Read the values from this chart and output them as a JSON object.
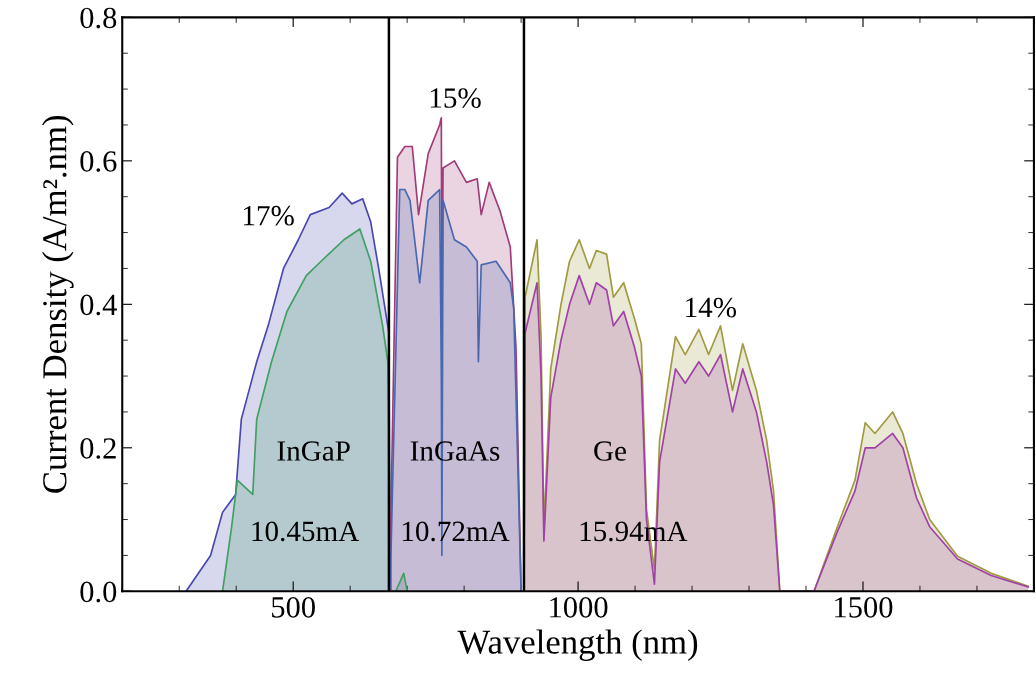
{
  "chart_data": {
    "type": "area",
    "xlabel": "Wavelength (nm)",
    "ylabel": "Current Density (A/m².nm)",
    "xlim": [
      200,
      1800
    ],
    "xticks": [
      500,
      1000,
      1500
    ],
    "ylim": [
      0,
      0.8
    ],
    "yticks": [
      {
        "value": 0,
        "label": "0.0"
      },
      {
        "value": 0.2,
        "label": "0.2"
      },
      {
        "value": 0.4,
        "label": "0.4"
      },
      {
        "value": 0.6,
        "label": "0.6"
      },
      {
        "value": 0.8,
        "label": "0.8"
      }
    ],
    "grid": false,
    "legend": false,
    "series": [
      {
        "color": "#4848b0",
        "x": [
          312,
          355,
          376,
          399,
          409,
          436,
          456,
          483,
          509,
          530,
          563,
          586,
          603,
          622,
          636,
          650,
          662,
          668,
          670
        ],
        "values": [
          0,
          0.05,
          0.11,
          0.135,
          0.24,
          0.32,
          0.37,
          0.45,
          0.49,
          0.525,
          0.535,
          0.555,
          0.54,
          0.547,
          0.515,
          0.45,
          0.39,
          0.36,
          0
        ]
      },
      {
        "color": "#40a060",
        "x": [
          376,
          392,
          402,
          429,
          436,
          462,
          489,
          523,
          549,
          589,
          617,
          636,
          657,
          666,
          672,
          680,
          694,
          700
        ],
        "values": [
          0,
          0.09,
          0.155,
          0.135,
          0.24,
          0.32,
          0.39,
          0.44,
          0.46,
          0.49,
          0.505,
          0.46,
          0.37,
          0.32,
          0,
          0,
          0.025,
          0
        ]
      },
      {
        "color": "#a03c78",
        "x": [
          669,
          683,
          696,
          709,
          720,
          737,
          757,
          760,
          761,
          763,
          783,
          804,
          823,
          830,
          844,
          863,
          881,
          891,
          900
        ],
        "values": [
          0,
          0.605,
          0.62,
          0.62,
          0.525,
          0.61,
          0.65,
          0.66,
          0.36,
          0.59,
          0.6,
          0.57,
          0.575,
          0.525,
          0.57,
          0.53,
          0.48,
          0.34,
          0
        ]
      },
      {
        "color": "#4868b0",
        "x": [
          670,
          687,
          696,
          705,
          722,
          737,
          757,
          760,
          761,
          763,
          783,
          804,
          823,
          825,
          830,
          856,
          881,
          887,
          900
        ],
        "values": [
          0,
          0.56,
          0.56,
          0.545,
          0.43,
          0.545,
          0.56,
          0.3,
          0.05,
          0.545,
          0.49,
          0.48,
          0.46,
          0.32,
          0.455,
          0.46,
          0.43,
          0.395,
          0
        ]
      },
      {
        "color": "#a09a40",
        "x": [
          905,
          907,
          928,
          935,
          940,
          952,
          970,
          985,
          1002,
          1020,
          1032,
          1050,
          1062,
          1080,
          1099,
          1111,
          1120,
          1134,
          1143,
          1171,
          1188,
          1212,
          1229,
          1250,
          1271,
          1289,
          1313,
          1331,
          1343,
          1354,
          1414,
          1456,
          1486,
          1504,
          1521,
          1552,
          1570,
          1594,
          1617,
          1666,
          1725,
          1790
        ],
        "values": [
          0,
          0.41,
          0.49,
          0.355,
          0.088,
          0.31,
          0.4,
          0.46,
          0.49,
          0.45,
          0.475,
          0.47,
          0.41,
          0.43,
          0.38,
          0.345,
          0.115,
          0.03,
          0.21,
          0.355,
          0.33,
          0.365,
          0.33,
          0.37,
          0.28,
          0.345,
          0.28,
          0.21,
          0.14,
          0,
          0,
          0.092,
          0.155,
          0.235,
          0.22,
          0.25,
          0.22,
          0.15,
          0.1,
          0.049,
          0.025,
          0.007
        ]
      },
      {
        "color": "#a040a8",
        "x": [
          905,
          907,
          928,
          935,
          940,
          952,
          970,
          985,
          1002,
          1020,
          1032,
          1050,
          1062,
          1080,
          1099,
          1111,
          1120,
          1134,
          1143,
          1171,
          1188,
          1212,
          1229,
          1250,
          1271,
          1289,
          1313,
          1331,
          1343,
          1354,
          1414,
          1456,
          1486,
          1504,
          1521,
          1552,
          1570,
          1594,
          1617,
          1666,
          1725,
          1790
        ],
        "values": [
          0,
          0.36,
          0.43,
          0.3,
          0.07,
          0.27,
          0.35,
          0.4,
          0.44,
          0.4,
          0.43,
          0.42,
          0.37,
          0.39,
          0.34,
          0.3,
          0.1,
          0.01,
          0.18,
          0.31,
          0.29,
          0.32,
          0.3,
          0.33,
          0.25,
          0.31,
          0.25,
          0.18,
          0.12,
          0,
          0,
          0.085,
          0.14,
          0.2,
          0.2,
          0.22,
          0.2,
          0.13,
          0.09,
          0.045,
          0.022,
          0.006
        ]
      }
    ],
    "ref_lines": [
      {
        "axis": "x",
        "value": 668,
        "color": "#000000"
      },
      {
        "axis": "x",
        "value": 905,
        "color": "#000000"
      }
    ],
    "annotations": [
      "17%",
      "15%",
      "14%",
      "InGaP",
      "InGaAs",
      "Ge",
      "10.45mA",
      "10.72mA",
      "15.94mA"
    ]
  }
}
